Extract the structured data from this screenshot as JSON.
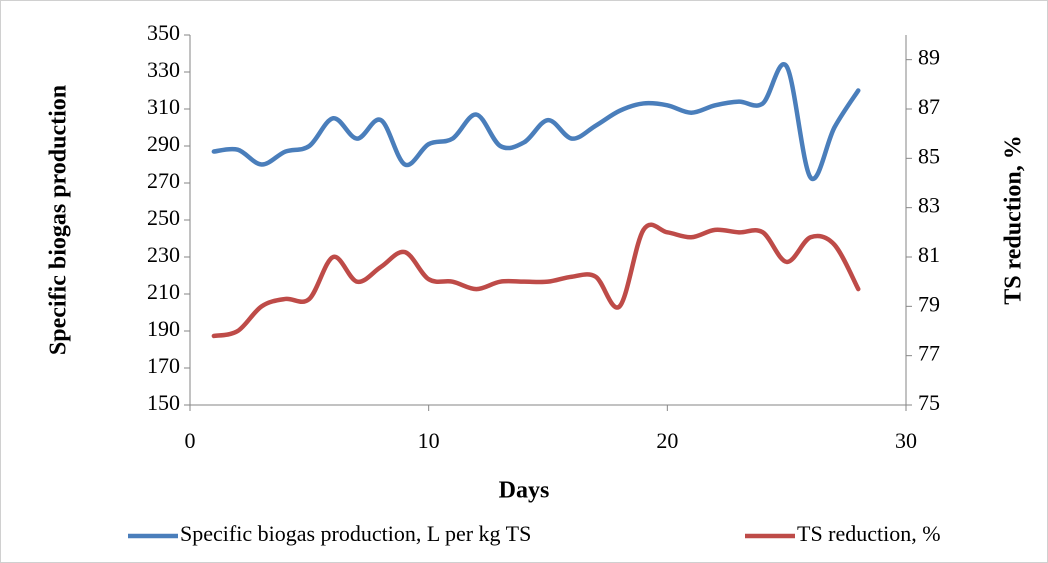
{
  "chart_data": {
    "type": "line",
    "x": [
      1,
      2,
      3,
      4,
      5,
      6,
      7,
      8,
      9,
      10,
      11,
      12,
      13,
      14,
      15,
      16,
      17,
      18,
      19,
      20,
      21,
      22,
      23,
      24,
      25,
      26,
      27,
      28
    ],
    "series": [
      {
        "name": "Specific biogas production, L per kg TS",
        "color": "#4a7ebb",
        "axis": "y",
        "values": [
          287,
          288,
          280,
          287,
          290,
          305,
          294,
          304,
          280,
          291,
          294,
          307,
          290,
          292,
          304,
          294,
          301,
          309,
          313,
          312,
          308,
          312,
          314,
          313,
          333,
          273,
          300,
          320
        ]
      },
      {
        "name": "TS reduction, %",
        "color": "#be4b48",
        "axis": "y2",
        "values": [
          77.8,
          78.0,
          79.0,
          79.3,
          79.3,
          81.0,
          80.0,
          80.6,
          81.2,
          80.1,
          80.0,
          79.7,
          80.0,
          80.0,
          80.0,
          80.2,
          80.2,
          79.0,
          82.1,
          82.0,
          81.8,
          82.1,
          82.0,
          82.0,
          80.8,
          81.8,
          81.5,
          79.7
        ]
      }
    ],
    "xlabel": "Days",
    "ylabel": "Specific biogas production",
    "y2label": "TS reduction, %",
    "xlim": [
      0,
      30
    ],
    "xticks": [
      0,
      10,
      20,
      30
    ],
    "ylim": [
      150,
      350
    ],
    "yticks": [
      150,
      170,
      190,
      210,
      230,
      250,
      270,
      290,
      310,
      330,
      350
    ],
    "y2lim": [
      75,
      90
    ],
    "y2ticks": [
      75,
      77,
      79,
      81,
      83,
      85,
      87,
      89
    ],
    "legend": "bottom"
  }
}
